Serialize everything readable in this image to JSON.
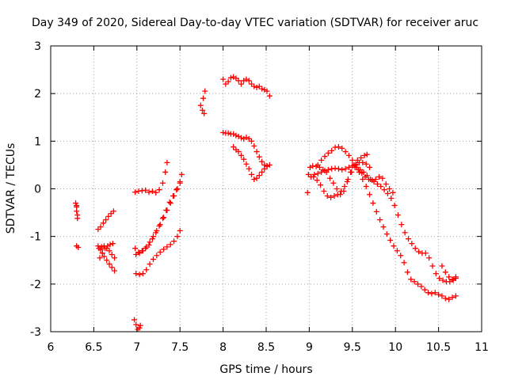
{
  "chart_data": {
    "type": "scatter",
    "title": "Day 349 of 2020, Sidereal Day-to-day VTEC variation (SDTVAR) for receiver aruc",
    "xlabel": "GPS time / hours",
    "ylabel": "SDTVAR / TECUs",
    "xlim": [
      6,
      11
    ],
    "ylim": [
      -3,
      3
    ],
    "xticks": [
      6,
      6.5,
      7,
      7.5,
      8,
      8.5,
      9,
      9.5,
      10,
      10.5,
      11
    ],
    "xtick_labels": [
      "6",
      "6.5",
      "7",
      "7.5",
      "8",
      "8.5",
      "9",
      "9.5",
      "10",
      "10.5",
      "11"
    ],
    "yticks": [
      -3,
      -2,
      -1,
      0,
      1,
      2,
      3
    ],
    "ytick_labels": [
      "-3",
      "-2",
      "-1",
      "0",
      "1",
      "2",
      "3"
    ],
    "grid": true,
    "marker": "+",
    "color": "#ff0000",
    "series": [
      {
        "name": "s1",
        "points": [
          [
            6.29,
            -0.3
          ],
          [
            6.3,
            -0.38
          ],
          [
            6.3,
            -0.47
          ],
          [
            6.31,
            -0.55
          ],
          [
            6.31,
            -0.62
          ],
          [
            6.3,
            -0.35
          ]
        ]
      },
      {
        "name": "s2",
        "points": [
          [
            6.3,
            -1.2
          ],
          [
            6.32,
            -1.23
          ]
        ]
      },
      {
        "name": "s3",
        "points": [
          [
            6.55,
            -0.85
          ],
          [
            6.58,
            -0.8
          ],
          [
            6.61,
            -0.72
          ],
          [
            6.64,
            -0.65
          ],
          [
            6.67,
            -0.58
          ],
          [
            6.7,
            -0.52
          ],
          [
            6.73,
            -0.47
          ]
        ]
      },
      {
        "name": "s4",
        "points": [
          [
            6.55,
            -1.2
          ],
          [
            6.58,
            -1.28
          ],
          [
            6.6,
            -1.35
          ],
          [
            6.62,
            -1.42
          ],
          [
            6.65,
            -1.5
          ],
          [
            6.68,
            -1.58
          ],
          [
            6.71,
            -1.65
          ],
          [
            6.74,
            -1.72
          ]
        ]
      },
      {
        "name": "s5",
        "points": [
          [
            6.56,
            -1.25
          ],
          [
            6.59,
            -1.22
          ],
          [
            6.62,
            -1.2
          ],
          [
            6.65,
            -1.25
          ],
          [
            6.68,
            -1.3
          ],
          [
            6.71,
            -1.38
          ],
          [
            6.74,
            -1.45
          ]
        ]
      },
      {
        "name": "s6",
        "points": [
          [
            6.57,
            -1.45
          ],
          [
            6.6,
            -1.35
          ],
          [
            6.63,
            -1.25
          ],
          [
            6.66,
            -1.2
          ],
          [
            6.69,
            -1.17
          ],
          [
            6.72,
            -1.15
          ]
        ]
      },
      {
        "name": "s7",
        "points": [
          [
            6.98,
            -0.07
          ],
          [
            7.02,
            -0.05
          ],
          [
            7.06,
            -0.04
          ],
          [
            7.1,
            -0.03
          ],
          [
            7.14,
            -0.07
          ],
          [
            7.18,
            -0.05
          ],
          [
            7.22,
            -0.08
          ],
          [
            7.26,
            -0.02
          ],
          [
            7.3,
            0.12
          ],
          [
            7.33,
            0.35
          ],
          [
            7.35,
            0.55
          ]
        ]
      },
      {
        "name": "s8",
        "points": [
          [
            6.98,
            -1.25
          ],
          [
            7.02,
            -1.33
          ],
          [
            7.06,
            -1.3
          ],
          [
            7.1,
            -1.25
          ],
          [
            7.14,
            -1.18
          ],
          [
            7.18,
            -1.05
          ],
          [
            7.22,
            -0.92
          ],
          [
            7.26,
            -0.78
          ],
          [
            7.3,
            -0.62
          ],
          [
            7.34,
            -0.45
          ],
          [
            7.38,
            -0.28
          ],
          [
            7.42,
            -0.15
          ],
          [
            7.46,
            -0.02
          ],
          [
            7.5,
            0.12
          ],
          [
            7.52,
            0.3
          ]
        ]
      },
      {
        "name": "s9",
        "points": [
          [
            6.99,
            -1.38
          ],
          [
            7.03,
            -1.35
          ],
          [
            7.07,
            -1.3
          ],
          [
            7.11,
            -1.22
          ],
          [
            7.15,
            -1.12
          ],
          [
            7.19,
            -1.0
          ],
          [
            7.23,
            -0.88
          ],
          [
            7.27,
            -0.75
          ],
          [
            7.31,
            -0.6
          ],
          [
            7.35,
            -0.45
          ],
          [
            7.39,
            -0.3
          ],
          [
            7.43,
            -0.15
          ],
          [
            7.47,
            0.0
          ],
          [
            7.5,
            0.15
          ]
        ]
      },
      {
        "name": "s10",
        "points": [
          [
            6.99,
            -1.78
          ],
          [
            7.03,
            -1.8
          ],
          [
            7.07,
            -1.78
          ],
          [
            7.11,
            -1.7
          ],
          [
            7.15,
            -1.58
          ],
          [
            7.19,
            -1.48
          ],
          [
            7.23,
            -1.4
          ],
          [
            7.27,
            -1.33
          ],
          [
            7.31,
            -1.27
          ],
          [
            7.35,
            -1.22
          ],
          [
            7.39,
            -1.17
          ],
          [
            7.43,
            -1.1
          ],
          [
            7.47,
            -1.0
          ],
          [
            7.5,
            -0.88
          ]
        ]
      },
      {
        "name": "s11",
        "points": [
          [
            6.97,
            -2.75
          ],
          [
            6.99,
            -2.85
          ],
          [
            7.01,
            -2.95
          ],
          [
            7.03,
            -2.92
          ],
          [
            7.04,
            -2.87
          ]
        ]
      },
      {
        "name": "s12",
        "points": [
          [
            7.74,
            1.75
          ],
          [
            7.76,
            1.65
          ],
          [
            7.78,
            1.58
          ],
          [
            7.77,
            1.9
          ],
          [
            7.79,
            2.05
          ]
        ]
      },
      {
        "name": "s13",
        "points": [
          [
            8.0,
            2.3
          ],
          [
            8.03,
            2.2
          ],
          [
            8.06,
            2.25
          ],
          [
            8.09,
            2.33
          ],
          [
            8.12,
            2.35
          ],
          [
            8.15,
            2.32
          ],
          [
            8.18,
            2.27
          ],
          [
            8.21,
            2.2
          ],
          [
            8.24,
            2.27
          ],
          [
            8.27,
            2.3
          ],
          [
            8.3,
            2.27
          ],
          [
            8.33,
            2.2
          ],
          [
            8.36,
            2.15
          ],
          [
            8.39,
            2.13
          ],
          [
            8.42,
            2.15
          ],
          [
            8.45,
            2.1
          ],
          [
            8.48,
            2.08
          ],
          [
            8.51,
            2.05
          ],
          [
            8.54,
            1.95
          ]
        ]
      },
      {
        "name": "s14",
        "points": [
          [
            8.0,
            1.18
          ],
          [
            8.03,
            1.17
          ],
          [
            8.06,
            1.17
          ],
          [
            8.09,
            1.15
          ],
          [
            8.12,
            1.15
          ],
          [
            8.15,
            1.12
          ],
          [
            8.18,
            1.1
          ],
          [
            8.21,
            1.07
          ],
          [
            8.24,
            1.05
          ],
          [
            8.27,
            1.08
          ],
          [
            8.3,
            1.05
          ],
          [
            8.33,
            1.0
          ],
          [
            8.36,
            0.9
          ],
          [
            8.39,
            0.78
          ],
          [
            8.42,
            0.67
          ],
          [
            8.45,
            0.57
          ],
          [
            8.48,
            0.5
          ],
          [
            8.51,
            0.48
          ],
          [
            8.54,
            0.5
          ]
        ]
      },
      {
        "name": "s15",
        "points": [
          [
            8.12,
            0.88
          ],
          [
            8.15,
            0.82
          ],
          [
            8.18,
            0.78
          ],
          [
            8.21,
            0.7
          ],
          [
            8.24,
            0.62
          ],
          [
            8.27,
            0.52
          ],
          [
            8.3,
            0.42
          ],
          [
            8.33,
            0.3
          ],
          [
            8.36,
            0.2
          ],
          [
            8.39,
            0.22
          ],
          [
            8.42,
            0.28
          ],
          [
            8.45,
            0.35
          ],
          [
            8.48,
            0.42
          ],
          [
            8.51,
            0.47
          ]
        ]
      },
      {
        "name": "s16",
        "points": [
          [
            8.98,
            -0.08
          ],
          [
            8.99,
            0.3
          ],
          [
            9.01,
            0.45
          ],
          [
            9.04,
            0.48
          ],
          [
            9.08,
            0.47
          ],
          [
            9.12,
            0.45
          ],
          [
            9.16,
            0.4
          ],
          [
            9.2,
            0.35
          ],
          [
            9.24,
            0.22
          ],
          [
            9.28,
            0.12
          ],
          [
            9.32,
            0.0
          ],
          [
            9.36,
            -0.12
          ],
          [
            9.4,
            -0.05
          ],
          [
            9.44,
            0.15
          ],
          [
            9.48,
            0.35
          ],
          [
            9.52,
            0.5
          ],
          [
            9.56,
            0.6
          ],
          [
            9.6,
            0.65
          ],
          [
            9.64,
            0.7
          ],
          [
            9.67,
            0.72
          ]
        ]
      },
      {
        "name": "s17",
        "points": [
          [
            9.02,
            0.25
          ],
          [
            9.06,
            0.3
          ],
          [
            9.1,
            0.32
          ],
          [
            9.14,
            0.35
          ],
          [
            9.18,
            0.38
          ],
          [
            9.22,
            0.4
          ],
          [
            9.26,
            0.42
          ],
          [
            9.3,
            0.43
          ],
          [
            9.34,
            0.42
          ],
          [
            9.38,
            0.4
          ],
          [
            9.42,
            0.42
          ],
          [
            9.46,
            0.45
          ],
          [
            9.5,
            0.48
          ],
          [
            9.54,
            0.52
          ],
          [
            9.58,
            0.55
          ],
          [
            9.62,
            0.55
          ],
          [
            9.66,
            0.52
          ],
          [
            9.7,
            0.45
          ]
        ]
      },
      {
        "name": "s18",
        "points": [
          [
            9.05,
            0.25
          ],
          [
            9.09,
            0.18
          ],
          [
            9.13,
            0.08
          ],
          [
            9.17,
            -0.05
          ],
          [
            9.21,
            -0.15
          ],
          [
            9.25,
            -0.18
          ],
          [
            9.29,
            -0.15
          ],
          [
            9.33,
            -0.12
          ],
          [
            9.37,
            -0.05
          ],
          [
            9.41,
            0.05
          ],
          [
            9.45,
            0.2
          ],
          [
            9.49,
            0.35
          ],
          [
            9.53,
            0.45
          ],
          [
            9.57,
            0.4
          ],
          [
            9.61,
            0.33
          ],
          [
            9.65,
            0.25
          ],
          [
            9.69,
            0.2
          ],
          [
            9.73,
            0.18
          ],
          [
            9.77,
            0.2
          ],
          [
            9.81,
            0.25
          ],
          [
            9.85,
            0.22
          ],
          [
            9.89,
            0.1
          ],
          [
            9.93,
            0.0
          ],
          [
            9.97,
            -0.08
          ]
        ]
      },
      {
        "name": "s19",
        "points": [
          [
            9.1,
            0.5
          ],
          [
            9.14,
            0.6
          ],
          [
            9.18,
            0.68
          ],
          [
            9.22,
            0.75
          ],
          [
            9.26,
            0.8
          ],
          [
            9.3,
            0.87
          ],
          [
            9.34,
            0.88
          ],
          [
            9.38,
            0.85
          ],
          [
            9.42,
            0.78
          ],
          [
            9.46,
            0.7
          ],
          [
            9.5,
            0.6
          ],
          [
            9.54,
            0.5
          ],
          [
            9.58,
            0.35
          ],
          [
            9.62,
            0.2
          ],
          [
            9.66,
            0.05
          ],
          [
            9.7,
            -0.12
          ],
          [
            9.74,
            -0.3
          ],
          [
            9.78,
            -0.48
          ],
          [
            9.82,
            -0.65
          ],
          [
            9.86,
            -0.8
          ],
          [
            9.9,
            -0.95
          ],
          [
            9.94,
            -1.08
          ],
          [
            9.98,
            -1.2
          ],
          [
            10.02,
            -1.3
          ],
          [
            10.06,
            -1.4
          ],
          [
            10.1,
            -1.55
          ],
          [
            10.14,
            -1.75
          ],
          [
            10.18,
            -1.9
          ],
          [
            10.22,
            -1.95
          ],
          [
            10.26,
            -2.0
          ],
          [
            10.3,
            -2.05
          ],
          [
            10.34,
            -2.12
          ],
          [
            10.38,
            -2.18
          ],
          [
            10.42,
            -2.2
          ],
          [
            10.46,
            -2.18
          ],
          [
            10.5,
            -2.22
          ],
          [
            10.54,
            -2.25
          ],
          [
            10.58,
            -2.3
          ],
          [
            10.62,
            -2.32
          ],
          [
            10.66,
            -2.28
          ],
          [
            10.7,
            -2.25
          ]
        ]
      },
      {
        "name": "s20",
        "points": [
          [
            9.55,
            0.45
          ],
          [
            9.59,
            0.4
          ],
          [
            9.63,
            0.35
          ],
          [
            9.67,
            0.28
          ],
          [
            9.71,
            0.2
          ],
          [
            9.75,
            0.15
          ],
          [
            9.79,
            0.1
          ],
          [
            9.83,
            0.05
          ],
          [
            9.87,
            -0.02
          ],
          [
            9.91,
            -0.1
          ],
          [
            9.95,
            -0.2
          ],
          [
            9.99,
            -0.35
          ],
          [
            10.03,
            -0.55
          ],
          [
            10.07,
            -0.75
          ],
          [
            10.11,
            -0.92
          ],
          [
            10.15,
            -1.05
          ],
          [
            10.19,
            -1.15
          ],
          [
            10.23,
            -1.25
          ],
          [
            10.27,
            -1.32
          ],
          [
            10.31,
            -1.35
          ],
          [
            10.35,
            -1.35
          ],
          [
            10.39,
            -1.45
          ],
          [
            10.43,
            -1.62
          ],
          [
            10.47,
            -1.78
          ],
          [
            10.51,
            -1.88
          ],
          [
            10.55,
            -1.92
          ],
          [
            10.59,
            -1.95
          ],
          [
            10.63,
            -1.95
          ],
          [
            10.67,
            -1.92
          ],
          [
            10.7,
            -1.85
          ]
        ]
      },
      {
        "name": "s21",
        "points": [
          [
            10.54,
            -1.62
          ],
          [
            10.58,
            -1.75
          ],
          [
            10.62,
            -1.85
          ],
          [
            10.66,
            -1.9
          ],
          [
            10.7,
            -1.88
          ]
        ]
      }
    ]
  }
}
